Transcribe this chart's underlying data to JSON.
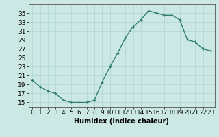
{
  "x": [
    0,
    1,
    2,
    3,
    4,
    5,
    6,
    7,
    8,
    9,
    10,
    11,
    12,
    13,
    14,
    15,
    16,
    17,
    18,
    19,
    20,
    21,
    22,
    23
  ],
  "y": [
    20,
    18.5,
    17.5,
    17,
    15.5,
    15,
    15,
    15,
    15.5,
    19.5,
    23,
    26,
    29.5,
    32,
    33.5,
    35.5,
    35,
    34.5,
    34.5,
    33.5,
    29,
    28.5,
    27,
    26.5
  ],
  "line_color": "#2e7d6e",
  "marker": "+",
  "bg_color": "#cce8e4",
  "grid_color": "#b0d4d0",
  "xlabel": "Humidex (Indice chaleur)",
  "xlim": [
    -0.5,
    23.5
  ],
  "ylim": [
    14,
    37
  ],
  "yticks": [
    15,
    17,
    19,
    21,
    23,
    25,
    27,
    29,
    31,
    33,
    35
  ],
  "xticks": [
    0,
    1,
    2,
    3,
    4,
    5,
    6,
    7,
    8,
    9,
    10,
    11,
    12,
    13,
    14,
    15,
    16,
    17,
    18,
    19,
    20,
    21,
    22,
    23
  ],
  "xtick_labels": [
    "0",
    "1",
    "2",
    "3",
    "4",
    "5",
    "6",
    "7",
    "8",
    "9",
    "10",
    "11",
    "12",
    "13",
    "14",
    "15",
    "16",
    "17",
    "18",
    "19",
    "20",
    "21",
    "22",
    "23"
  ],
  "xlabel_fontsize": 7,
  "tick_fontsize": 6.5,
  "linewidth": 1.0,
  "markersize": 3.5,
  "spine_color": "#555555"
}
